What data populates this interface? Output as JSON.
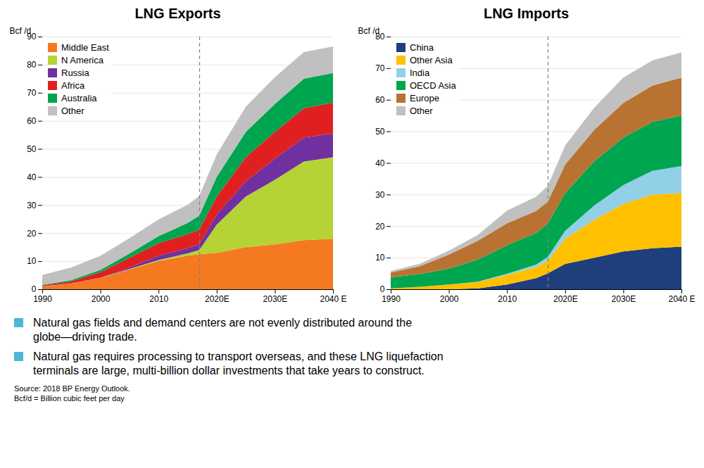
{
  "chart_data": [
    {
      "type": "area",
      "stacked": true,
      "title": "LNG Exports",
      "ylabel": "Bcf /d",
      "x": [
        1990,
        1995,
        2000,
        2005,
        2010,
        2015,
        2017,
        2020,
        2025,
        2030,
        2035,
        2040
      ],
      "xlim": [
        1990,
        2040
      ],
      "xticks": [
        1990,
        2000,
        2010,
        {
          "value": 2020,
          "label": "2020E"
        },
        {
          "value": 2030,
          "label": "2030E"
        },
        {
          "value": 2040,
          "label": "2040 E"
        }
      ],
      "ylim": [
        0,
        90
      ],
      "yticks": [
        0,
        10,
        20,
        30,
        40,
        50,
        60,
        70,
        80,
        90
      ],
      "grid": true,
      "legend": "upper left",
      "series": [
        {
          "name": "Middle East",
          "color": "#f47920",
          "values": [
            1.0,
            2.0,
            4.0,
            7.0,
            10.0,
            12.0,
            12.5,
            13.0,
            15.0,
            16.0,
            17.5,
            18.0
          ]
        },
        {
          "name": "N America",
          "color": "#b5d334",
          "values": [
            0.05,
            0.05,
            0.1,
            0.2,
            0.4,
            0.8,
            1.5,
            10.0,
            18.0,
            23.0,
            28.0,
            29.0
          ]
        },
        {
          "name": "Russia",
          "color": "#7030a0",
          "values": [
            0.0,
            0.0,
            0.0,
            0.5,
            1.5,
            1.8,
            2.0,
            3.5,
            5.5,
            7.5,
            8.5,
            8.5
          ]
        },
        {
          "name": "Africa",
          "color": "#e02020",
          "values": [
            0.3,
            0.8,
            2.0,
            3.5,
            4.5,
            5.0,
            5.2,
            6.5,
            8.5,
            9.5,
            10.5,
            11.0
          ]
        },
        {
          "name": "Australia",
          "color": "#00a550",
          "values": [
            0.2,
            0.4,
            0.8,
            1.5,
            2.5,
            4.0,
            5.0,
            7.0,
            9.0,
            10.0,
            10.5,
            10.5
          ]
        },
        {
          "name": "Other",
          "color": "#c0c0c0",
          "values": [
            3.5,
            4.5,
            5.0,
            5.5,
            6.0,
            6.5,
            7.0,
            8.0,
            9.0,
            9.5,
            9.5,
            9.5
          ]
        }
      ],
      "annotations": [
        {
          "x": 2017,
          "line_style": "dashed"
        }
      ]
    },
    {
      "type": "area",
      "stacked": true,
      "title": "LNG Imports",
      "ylabel": "Bcf /d",
      "x": [
        1990,
        1995,
        2000,
        2005,
        2010,
        2015,
        2017,
        2020,
        2025,
        2030,
        2035,
        2040
      ],
      "xlim": [
        1990,
        2040
      ],
      "xticks": [
        1990,
        2000,
        2010,
        {
          "value": 2020,
          "label": "2020E"
        },
        {
          "value": 2030,
          "label": "2030E"
        },
        {
          "value": 2040,
          "label": "2040 E"
        }
      ],
      "ylim": [
        0,
        80
      ],
      "yticks": [
        0,
        10,
        20,
        30,
        40,
        50,
        60,
        70,
        80
      ],
      "grid": true,
      "legend": "upper left",
      "series": [
        {
          "name": "China",
          "color": "#1f3e7c",
          "values": [
            0.0,
            0.0,
            0.0,
            0.3,
            1.5,
            3.5,
            5.0,
            8.0,
            10.0,
            12.0,
            13.0,
            13.5
          ]
        },
        {
          "name": "Other Asia",
          "color": "#ffc000",
          "values": [
            0.3,
            0.8,
            1.5,
            2.0,
            3.0,
            3.5,
            4.0,
            8.0,
            12.0,
            15.0,
            17.0,
            17.0
          ]
        },
        {
          "name": "India",
          "color": "#92d0e8",
          "values": [
            0.0,
            0.0,
            0.0,
            0.1,
            0.4,
            0.8,
            1.2,
            2.5,
            4.5,
            6.0,
            7.5,
            8.5
          ]
        },
        {
          "name": "OECD Asia",
          "color": "#00a550",
          "values": [
            3.5,
            4.0,
            5.0,
            7.0,
            9.0,
            10.0,
            10.5,
            12.0,
            14.0,
            15.0,
            15.5,
            16.0
          ]
        },
        {
          "name": "Europe",
          "color": "#b87333",
          "values": [
            1.5,
            2.5,
            4.5,
            6.0,
            7.0,
            7.0,
            7.0,
            9.0,
            10.0,
            11.0,
            11.5,
            12.0
          ]
        },
        {
          "name": "Other",
          "color": "#c0c0c0",
          "values": [
            0.5,
            0.8,
            1.2,
            1.8,
            4.0,
            4.5,
            5.0,
            6.0,
            7.0,
            8.0,
            8.0,
            8.0
          ]
        }
      ],
      "annotations": [
        {
          "x": 2017,
          "line_style": "dashed"
        }
      ]
    }
  ],
  "annotations": [
    {
      "text": "Natural gas fields and demand centers are not evenly distributed around the\nglobe—driving trade.",
      "marker": "square",
      "color": "#4ab8d8"
    },
    {
      "text": "Natural gas requires processing to transport overseas, and these LNG liquefaction\nterminals are large, multi-billion dollar investments that take years to construct.",
      "marker": "square",
      "color": "#4ab8d8"
    },
    {
      "text": "Source: 2018 BP Energy Outlook.\nBcf/d = Billion cubic feet per day"
    }
  ]
}
